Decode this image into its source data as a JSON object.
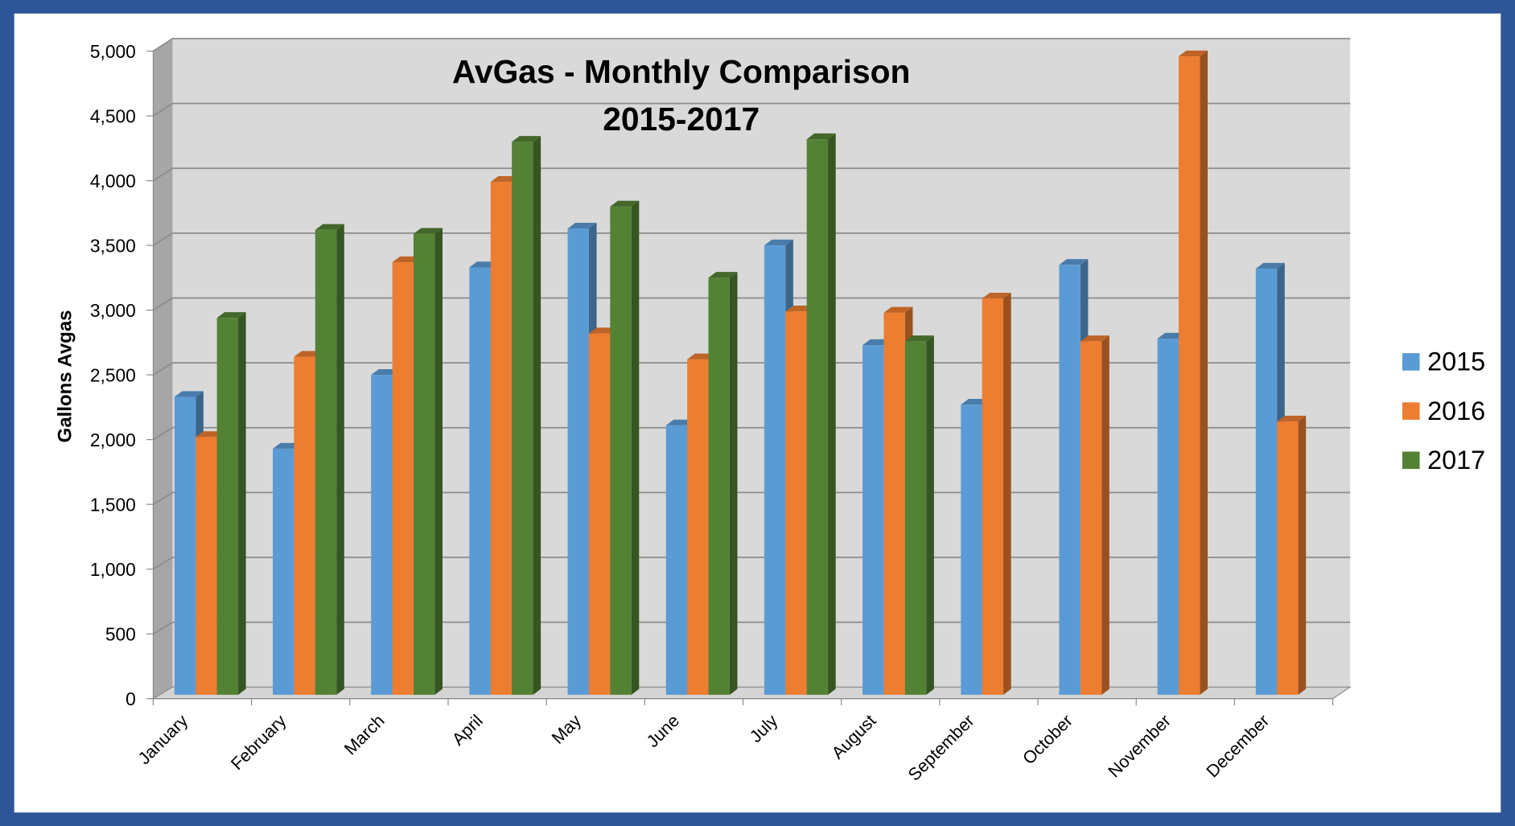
{
  "chart_data": {
    "type": "bar",
    "title": "AvGas - Monthly Comparison",
    "subtitle": "2015-2017",
    "y_label": "Gallons Avgas",
    "categories": [
      "January",
      "February",
      "March",
      "April",
      "May",
      "June",
      "July",
      "August",
      "September",
      "October",
      "November",
      "December"
    ],
    "series": [
      {
        "name": "2015",
        "color": "#5b9bd5",
        "values": [
          2300,
          1900,
          2470,
          3300,
          3600,
          2080,
          3470,
          2700,
          2240,
          3320,
          2750,
          3290
        ]
      },
      {
        "name": "2016",
        "color": "#ed7d31",
        "values": [
          1990,
          2610,
          3340,
          3960,
          2790,
          2590,
          2960,
          2950,
          3060,
          2730,
          4930,
          2110
        ]
      },
      {
        "name": "2017",
        "color": "#548235",
        "values": [
          2910,
          3590,
          3560,
          4270,
          3770,
          3220,
          4290,
          2730,
          null,
          null,
          null,
          null
        ]
      }
    ],
    "ylim": [
      0,
      5000
    ],
    "yticks": [
      0,
      500,
      {
        "value": 1000,
        "label": "1,000"
      },
      {
        "value": 1500,
        "label": "1,500"
      },
      {
        "value": 2000,
        "label": "2,000"
      },
      {
        "value": 2500,
        "label": "2,500"
      },
      {
        "value": 3000,
        "label": "3,000"
      },
      {
        "value": 3500,
        "label": "3,500"
      },
      {
        "value": 4000,
        "label": "4,000"
      },
      {
        "value": 4500,
        "label": "4,500"
      },
      {
        "value": 5000,
        "label": "5,000"
      }
    ],
    "grid": true,
    "legend": "right"
  }
}
